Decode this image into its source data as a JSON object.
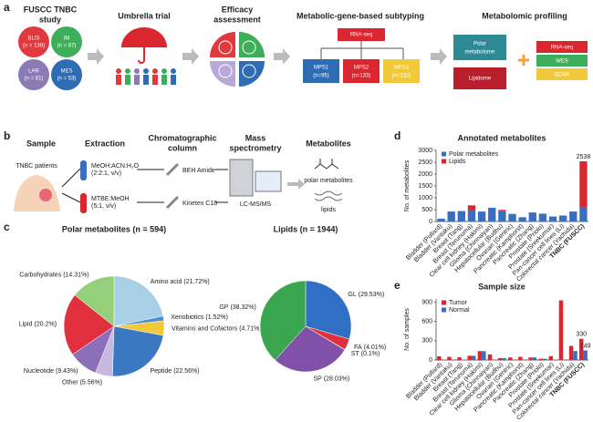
{
  "figure": {
    "a": {
      "label": "a",
      "study_title": [
        "FUSCC TNBC",
        "study"
      ],
      "subtypes": [
        {
          "name": "BLIS",
          "n": "(n = 139)"
        },
        {
          "name": "IM",
          "n": "(n = 87)"
        },
        {
          "name": "LAR",
          "n": "(n = 81)"
        },
        {
          "name": "MES",
          "n": "(n = 53)"
        }
      ],
      "umbrella": "Umbrella trial",
      "efficacy": [
        "Efficacy",
        "assessment"
      ],
      "subtyping": "Metabolic-gene-based subtyping",
      "rnaseq": "RNA-seq",
      "mps": [
        {
          "name": "MPS1",
          "n": "(n=95)"
        },
        {
          "name": "MPS2",
          "n": "(n=133)"
        },
        {
          "name": "MPS3",
          "n": "(n=132)"
        }
      ],
      "profiling": "Metabolomic profiling",
      "metabolome": [
        [
          "Polar",
          "metabolome"
        ],
        "Lipidome"
      ],
      "omics": [
        "RNA-seq",
        "WES",
        "SCNA"
      ]
    },
    "b": {
      "label": "b",
      "headers": [
        [
          "Sample"
        ],
        [
          "Extraction"
        ],
        [
          "Chromatographic",
          "column"
        ],
        [
          "Mass",
          "spectrometry"
        ],
        [
          "Metabolites"
        ]
      ],
      "patients": "TNBC patients",
      "solvents": [
        [
          "MeOH:ACN:H₂O",
          "(2:2:1, v/v)"
        ],
        [
          "MTBE:MeOH",
          "(5:1, v/v)"
        ]
      ],
      "columns": [
        "BEH Amide",
        "Kinetex C18"
      ],
      "ms": "LC-MS/MS",
      "products": [
        "polar metabolites",
        "lipids"
      ]
    },
    "panel_labels": {
      "c": "c",
      "d": "d",
      "e": "e"
    }
  },
  "chart_data": [
    {
      "type": "pie",
      "title": "Polar metabolites (n = 594)",
      "categories": [
        "Amino acid",
        "Xenobiotics",
        "Vitamins and Cofactors",
        "Peptide",
        "Other",
        "Nucleotide",
        "Lipid",
        "Carbohydrates"
      ],
      "values": [
        21.72,
        1.52,
        4.71,
        22.56,
        5.56,
        9.43,
        20.2,
        14.31
      ],
      "value_labels": [
        "(21.72%)",
        "(1.52%)",
        "(4.71%)",
        "(22.56%)",
        "(5.56%)",
        "(9.43%)",
        "(20.2%)",
        "(14.31%)"
      ],
      "colors": [
        "#a9cfe6",
        "#4a8fcf",
        "#f2c93b",
        "#3a78c2",
        "#c7b8dd",
        "#8b6fb8",
        "#e0303d",
        "#96cf7a"
      ]
    },
    {
      "type": "pie",
      "title": "Lipids (n = 1944)",
      "categories": [
        "GL",
        "FA",
        "ST",
        "SP",
        "GP"
      ],
      "values": [
        29.53,
        4.01,
        0.1,
        28.03,
        38.32
      ],
      "value_labels": [
        "(29.53%)",
        "(4.01%)",
        "(0.1%)",
        "(28.03%)",
        "(38.32%)"
      ],
      "colors": [
        "#2f6fc4",
        "#e0303d",
        "#333333",
        "#8150a8",
        "#3aa650"
      ]
    },
    {
      "type": "bar",
      "stacked": true,
      "title": "Annotated metabolites",
      "y_label": "No. of metabolites",
      "categories": [
        "Bladder (Pollard)",
        "Bladder (Vantaku)",
        "Breast (Tang)",
        "Breast (Terunuma)",
        "Clear cell kidney (Hakimi)",
        "Glioma (Chinnaiyan)",
        "Hepatocellular (Budhu)",
        "Ovarian (Gentric)",
        "Pancreatic (Kamphorst)",
        "Pancreatic (Zhang)",
        "Prostate (Priolo)",
        "Prostate (Sreekumar)",
        "Pan-cancer cell lines (Li)",
        "Colorectal cancer (Yachida)",
        "TNBC (FUSCC)"
      ],
      "series": [
        {
          "name": "Polar metabolites",
          "color": "#3a6fbf",
          "values": [
            120,
            420,
            440,
            480,
            420,
            580,
            450,
            320,
            180,
            380,
            330,
            210,
            250,
            420,
            594
          ]
        },
        {
          "name": "Lipids",
          "color": "#d9262f",
          "values": [
            0,
            0,
            0,
            200,
            0,
            0,
            40,
            0,
            0,
            0,
            0,
            0,
            0,
            0,
            1944
          ]
        }
      ],
      "total_labels": [
        null,
        null,
        null,
        null,
        null,
        null,
        null,
        null,
        null,
        null,
        null,
        null,
        null,
        null,
        "2538"
      ],
      "highlight_color": "#d9262f",
      "ylim": [
        0,
        3000
      ],
      "yticks": [
        0,
        500,
        1000,
        1500,
        2000,
        2500,
        3000
      ]
    },
    {
      "type": "bar",
      "stacked": false,
      "title": "Sample size",
      "y_label": "No. of samples",
      "categories": [
        "Bladder (Pollard)",
        "Bladder (Vantaku)",
        "Breast (Tang)",
        "Breast (Terunuma)",
        "Clear cell kidney (Hakimi)",
        "Glioma (Chinnaiyan)",
        "Hepatocellular (Budhu)",
        "Ovarian (Gentric)",
        "Pancreatic (Kamphorst)",
        "Pancreatic (Zhang)",
        "Prostate (Priolo)",
        "Prostate (Sreekumar)",
        "Pan-cancer cell lines (Li)",
        "Colorectal cancer (Yachida)",
        "TNBC (FUSCC)"
      ],
      "series": [
        {
          "name": "Tumor",
          "color": "#d9262f",
          "values": [
            58,
            50,
            44,
            67,
            138,
            85,
            30,
            40,
            50,
            40,
            20,
            60,
            928,
            220,
            330
          ],
          "value_labels": [
            null,
            null,
            null,
            null,
            null,
            null,
            null,
            null,
            null,
            null,
            null,
            null,
            null,
            null,
            "330"
          ]
        },
        {
          "name": "Normal",
          "color": "#3a6fbf",
          "values": [
            0,
            0,
            0,
            65,
            138,
            0,
            30,
            0,
            0,
            40,
            20,
            0,
            0,
            140,
            149
          ],
          "value_labels": [
            null,
            null,
            null,
            null,
            null,
            null,
            null,
            null,
            null,
            null,
            null,
            null,
            null,
            null,
            "149"
          ]
        }
      ],
      "highlight_color": "#d9262f",
      "ylim": [
        0,
        950
      ],
      "yticks": [
        0,
        300,
        600,
        900
      ]
    }
  ]
}
